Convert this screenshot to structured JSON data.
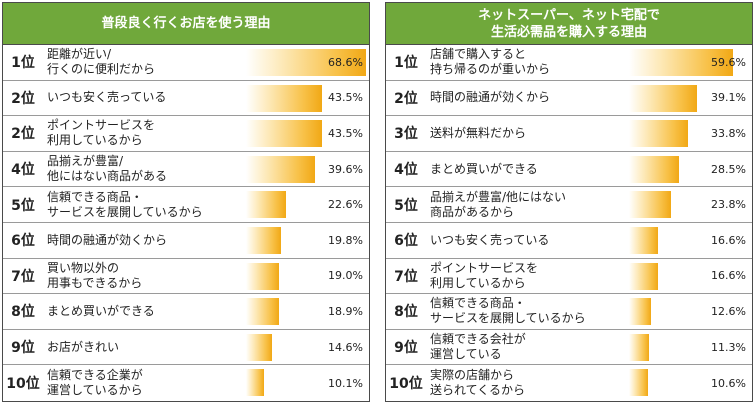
{
  "chart_data": [
    {
      "type": "bar",
      "title": "普段良く行くお店を使う理由",
      "unit": "%",
      "xlim": [
        0,
        100
      ],
      "rows": [
        {
          "rank": "1位",
          "label": "距離が近い/\n行くのに便利だから",
          "value": 68.6,
          "value_label": "68.6%"
        },
        {
          "rank": "2位",
          "label": "いつも安く売っている",
          "value": 43.5,
          "value_label": "43.5%"
        },
        {
          "rank": "2位",
          "label": "ポイントサービスを\n利用しているから",
          "value": 43.5,
          "value_label": "43.5%"
        },
        {
          "rank": "4位",
          "label": "品揃えが豊富/\n他にはない商品がある",
          "value": 39.6,
          "value_label": "39.6%"
        },
        {
          "rank": "5位",
          "label": "信頼できる商品・\nサービスを展開しているから",
          "value": 22.6,
          "value_label": "22.6%"
        },
        {
          "rank": "6位",
          "label": "時間の融通が効くから",
          "value": 19.8,
          "value_label": "19.8%"
        },
        {
          "rank": "7位",
          "label": "買い物以外の\n用事もできるから",
          "value": 19.0,
          "value_label": "19.0%"
        },
        {
          "rank": "8位",
          "label": "まとめ買いができる",
          "value": 18.9,
          "value_label": "18.9%"
        },
        {
          "rank": "9位",
          "label": "お店がきれい",
          "value": 14.6,
          "value_label": "14.6%"
        },
        {
          "rank": "10位",
          "label": "信頼できる企業が\n運営しているから",
          "value": 10.1,
          "value_label": "10.1%"
        }
      ]
    },
    {
      "type": "bar",
      "title": "ネットスーパー、ネット宅配で\n生活必需品を購入する理由",
      "unit": "%",
      "xlim": [
        0,
        100
      ],
      "rows": [
        {
          "rank": "1位",
          "label": "店舗で購入すると\n持ち帰るのが重いから",
          "value": 59.6,
          "value_label": "59.6%"
        },
        {
          "rank": "2位",
          "label": "時間の融通が効くから",
          "value": 39.1,
          "value_label": "39.1%"
        },
        {
          "rank": "3位",
          "label": "送料が無料だから",
          "value": 33.8,
          "value_label": "33.8%"
        },
        {
          "rank": "4位",
          "label": "まとめ買いができる",
          "value": 28.5,
          "value_label": "28.5%"
        },
        {
          "rank": "5位",
          "label": "品揃えが豊富/他にはない\n商品があるから",
          "value": 23.8,
          "value_label": "23.8%"
        },
        {
          "rank": "6位",
          "label": "いつも安く売っている",
          "value": 16.6,
          "value_label": "16.6%"
        },
        {
          "rank": "7位",
          "label": "ポイントサービスを\n利用しているから",
          "value": 16.6,
          "value_label": "16.6%"
        },
        {
          "rank": "8位",
          "label": "信頼できる商品・\nサービスを展開しているから",
          "value": 12.6,
          "value_label": "12.6%"
        },
        {
          "rank": "9位",
          "label": "信頼できる会社が\n運営している",
          "value": 11.3,
          "value_label": "11.3%"
        },
        {
          "rank": "10位",
          "label": "実際の店舗から\n送られてくるから",
          "value": 10.6,
          "value_label": "10.6%"
        }
      ]
    }
  ],
  "colors": {
    "header_bg": "#70a83b",
    "bar_end": "#f1a815",
    "bar_start": "#ffffff"
  }
}
